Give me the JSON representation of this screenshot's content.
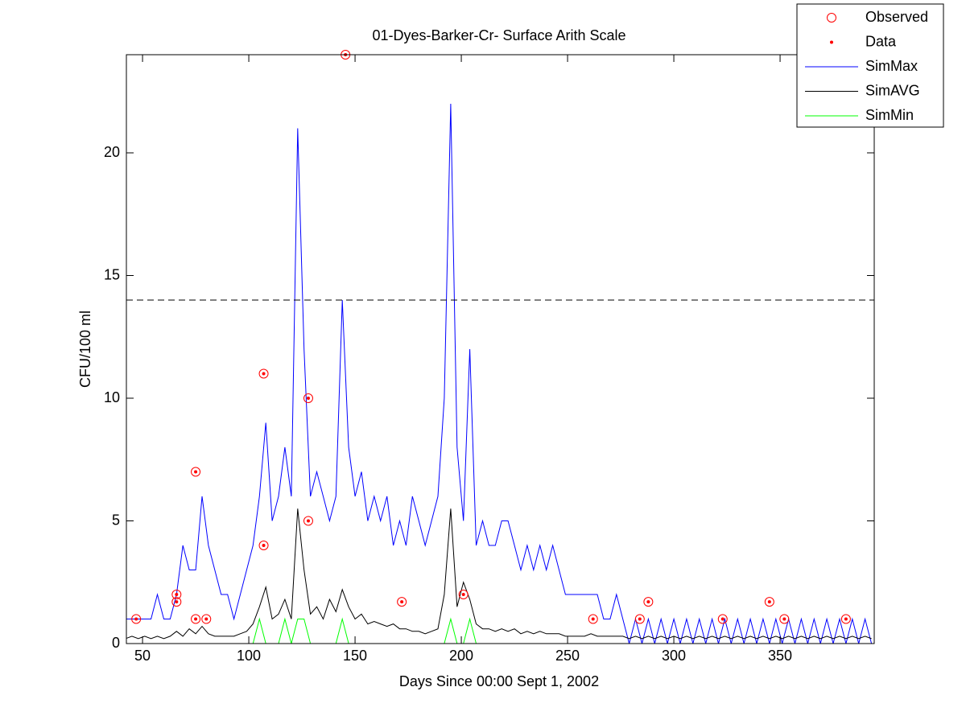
{
  "chart_data": {
    "type": "line",
    "title": "01-Dyes-Barker-Cr- Surface Arith Scale",
    "x_label": "Days Since 00:00 Sept 1, 2002",
    "y_label": "CFU/100 ml",
    "xlim": [
      42.4,
      394.3
    ],
    "ylim": [
      0,
      24
    ],
    "xticks": [
      50,
      100,
      150,
      200,
      250,
      300,
      350
    ],
    "yticks": [
      0,
      5,
      10,
      15,
      20
    ],
    "reference_line": 14,
    "legend": "outside-top-right",
    "x": [
      42,
      45,
      48,
      51,
      54,
      57,
      60,
      63,
      66,
      69,
      72,
      75,
      78,
      81,
      84,
      87,
      90,
      93,
      96,
      99,
      102,
      105,
      108,
      111,
      114,
      117,
      120,
      123,
      126,
      129,
      132,
      135,
      138,
      141,
      144,
      147,
      150,
      153,
      156,
      159,
      162,
      165,
      168,
      171,
      174,
      177,
      180,
      183,
      186,
      189,
      192,
      195,
      198,
      201,
      204,
      207,
      210,
      213,
      216,
      219,
      222,
      225,
      228,
      231,
      234,
      237,
      240,
      243,
      246,
      249,
      252,
      255,
      258,
      261,
      264,
      267,
      270,
      273,
      276,
      279,
      282,
      285,
      288,
      291,
      294,
      297,
      300,
      303,
      306,
      309,
      312,
      315,
      318,
      321,
      324,
      327,
      330,
      333,
      336,
      339,
      342,
      345,
      348,
      351,
      354,
      357,
      360,
      363,
      366,
      369,
      372,
      375,
      378,
      381,
      384,
      387,
      390,
      393
    ],
    "series": [
      {
        "name": "SimMax",
        "color": "#0000ff",
        "style": "line",
        "values": [
          1,
          1,
          1,
          1,
          1,
          2,
          1,
          1,
          2,
          4,
          3,
          3,
          6,
          4,
          3,
          2,
          2,
          1,
          2,
          3,
          4,
          6,
          9,
          5,
          6,
          8,
          6,
          21,
          12,
          6,
          7,
          6,
          5,
          6,
          14,
          8,
          6,
          7,
          5,
          6,
          5,
          6,
          4,
          5,
          4,
          6,
          5,
          4,
          5,
          6,
          10,
          22,
          8,
          5,
          12,
          4,
          5,
          4,
          4,
          5,
          5,
          4,
          3,
          4,
          3,
          4,
          3,
          4,
          3,
          2,
          2,
          2,
          2,
          2,
          2,
          1,
          1,
          2,
          1,
          0,
          1,
          0,
          1,
          0,
          1,
          0,
          1,
          0,
          1,
          0,
          1,
          0,
          1,
          0,
          1,
          0,
          1,
          0,
          1,
          0,
          1,
          0,
          1,
          0,
          1,
          0,
          1,
          0,
          1,
          0,
          1,
          0,
          1,
          0,
          1,
          0,
          1,
          0
        ]
      },
      {
        "name": "SimAVG",
        "color": "#000000",
        "style": "line",
        "values": [
          0.2,
          0.3,
          0.2,
          0.3,
          0.2,
          0.3,
          0.2,
          0.3,
          0.5,
          0.3,
          0.6,
          0.4,
          0.7,
          0.4,
          0.3,
          0.3,
          0.3,
          0.3,
          0.4,
          0.5,
          0.8,
          1.5,
          2.3,
          1.0,
          1.2,
          1.8,
          1.0,
          5.5,
          3.0,
          1.2,
          1.5,
          1.0,
          1.8,
          1.3,
          2.2,
          1.5,
          1.0,
          1.2,
          0.8,
          0.9,
          0.8,
          0.7,
          0.8,
          0.6,
          0.6,
          0.5,
          0.5,
          0.4,
          0.5,
          0.6,
          2.0,
          5.5,
          1.5,
          2.5,
          1.8,
          0.8,
          0.6,
          0.6,
          0.5,
          0.6,
          0.5,
          0.6,
          0.4,
          0.5,
          0.4,
          0.5,
          0.4,
          0.4,
          0.4,
          0.3,
          0.3,
          0.3,
          0.3,
          0.4,
          0.3,
          0.3,
          0.3,
          0.3,
          0.3,
          0.2,
          0.3,
          0.2,
          0.3,
          0.2,
          0.3,
          0.2,
          0.3,
          0.2,
          0.3,
          0.2,
          0.3,
          0.2,
          0.3,
          0.2,
          0.3,
          0.2,
          0.3,
          0.2,
          0.3,
          0.2,
          0.3,
          0.2,
          0.3,
          0.2,
          0.3,
          0.2,
          0.3,
          0.2,
          0.3,
          0.2,
          0.3,
          0.2,
          0.3,
          0.2,
          0.3,
          0.2,
          0.3,
          0.2
        ]
      },
      {
        "name": "SimMin",
        "color": "#00ff00",
        "style": "line",
        "values": [
          0,
          0,
          0,
          0,
          0,
          0,
          0,
          0,
          0,
          0,
          0,
          0,
          0,
          0,
          0,
          0,
          0,
          0,
          0,
          0,
          0,
          1,
          0,
          0,
          0,
          1,
          0,
          1,
          1,
          0,
          0,
          0,
          0,
          0,
          1,
          0,
          0,
          0,
          0,
          0,
          0,
          0,
          0,
          0,
          0,
          0,
          0,
          0,
          0,
          0,
          0,
          1,
          0,
          0,
          1,
          0,
          0,
          0,
          0,
          0,
          0,
          0,
          0,
          0,
          0,
          0,
          0,
          0,
          0,
          0,
          0,
          0,
          0,
          0,
          0,
          0,
          0,
          0,
          0,
          0,
          0,
          0,
          0,
          0,
          0,
          0,
          0,
          0,
          0,
          0,
          0,
          0,
          0,
          0,
          0,
          0,
          0,
          0,
          0,
          0,
          0,
          0,
          0,
          0,
          0,
          0,
          0,
          0,
          0,
          0,
          0,
          0,
          0,
          0,
          0,
          0,
          0,
          0
        ]
      },
      {
        "name": "Observed",
        "color": "#ff0000",
        "style": "circle",
        "x": [
          47,
          66,
          66,
          75,
          75,
          80,
          107,
          107,
          128,
          128,
          145.5,
          172,
          201,
          262,
          284,
          288,
          323,
          345,
          352,
          381
        ],
        "values": [
          1,
          2,
          1.7,
          7,
          1,
          1,
          11,
          4,
          10,
          5,
          24,
          1.7,
          2,
          1,
          1,
          1.7,
          1,
          1.7,
          1,
          1
        ]
      },
      {
        "name": "Data",
        "color": "#ff0000",
        "style": "dot",
        "x": [
          47,
          66,
          66,
          75,
          75,
          80,
          107,
          107,
          128,
          128,
          145.5,
          172,
          201,
          262,
          284,
          288,
          323,
          345,
          352,
          381
        ],
        "values": [
          1,
          2,
          1.7,
          7,
          1,
          1,
          11,
          4,
          10,
          5,
          24,
          1.7,
          2,
          1,
          1,
          1.7,
          1,
          1.7,
          1,
          1
        ]
      }
    ]
  }
}
